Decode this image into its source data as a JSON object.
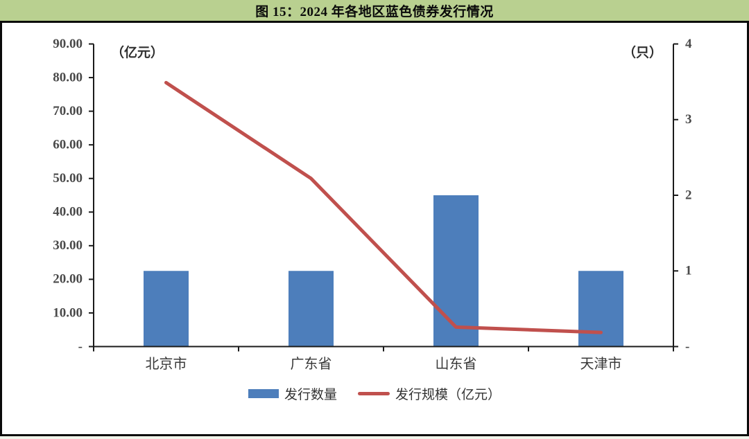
{
  "header": {
    "title": "图 15：2024 年各地区蓝色债券发行情况"
  },
  "colors": {
    "header_bg": "#b9d090",
    "bar": "#4d7ebb",
    "line": "#c0504d",
    "axis": "#1a1a1a",
    "tick_text": "#4a4a4a",
    "category_text": "#383838",
    "frame_border": "#0a0a0a"
  },
  "chart_data": {
    "type": "bar",
    "title": "图 15：2024 年各地区蓝色债券发行情况",
    "categories": [
      "北京市",
      "广东省",
      "山东省",
      "天津市"
    ],
    "series": [
      {
        "name": "发行数量",
        "type": "bar",
        "axis": "right",
        "unit": "只",
        "values": [
          1,
          1,
          2,
          1
        ]
      },
      {
        "name": "发行规模（亿元）",
        "type": "line",
        "axis": "left",
        "unit": "亿元",
        "values": [
          78.5,
          50.0,
          5.8,
          4.2
        ]
      }
    ],
    "left_axis": {
      "label": "（亿元）",
      "min": 0,
      "max": 90,
      "tick_step": 10,
      "tick_labels": [
        "-",
        "10.00",
        "20.00",
        "30.00",
        "40.00",
        "50.00",
        "60.00",
        "70.00",
        "80.00",
        "90.00"
      ]
    },
    "right_axis": {
      "label": "（只）",
      "min": 0,
      "max": 4,
      "tick_step": 1,
      "tick_labels": [
        "-",
        "1",
        "2",
        "3",
        "4"
      ]
    },
    "legend": [
      {
        "label": "发行数量",
        "swatch": "bar"
      },
      {
        "label": "发行规模（亿元）",
        "swatch": "line"
      }
    ],
    "grid": false,
    "legend_position": "bottom"
  }
}
